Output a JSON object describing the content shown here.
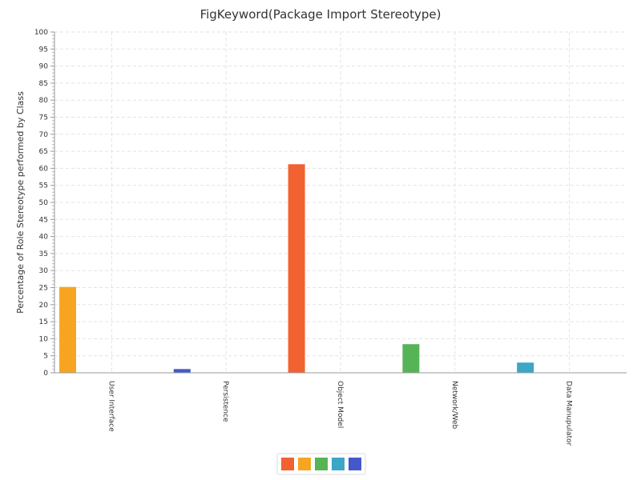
{
  "chart_data": {
    "type": "bar",
    "title": "FigKeyword(Package Import Stereotype)",
    "ylabel": "Percentage of Role Stereotype performed by Class",
    "xlabel": "",
    "ylim": [
      0,
      100
    ],
    "ytick_step": 5,
    "grid": true,
    "legend_position": "bottom",
    "categories": [
      "User Interface",
      "Persistence",
      "Object Model",
      "Network/Web",
      "Data Manupulator"
    ],
    "series": [
      {
        "color": "#f26130",
        "values": [
          0,
          0,
          61.2,
          0,
          0
        ]
      },
      {
        "color": "#f7a521",
        "values": [
          25.2,
          0,
          0,
          0,
          0
        ]
      },
      {
        "color": "#56b356",
        "values": [
          0,
          0,
          0,
          8.4,
          0
        ]
      },
      {
        "color": "#3ba6c6",
        "values": [
          0,
          0,
          0,
          0,
          3.0
        ]
      },
      {
        "color": "#4458c9",
        "values": [
          0,
          1.1,
          0,
          0,
          0
        ]
      }
    ]
  }
}
